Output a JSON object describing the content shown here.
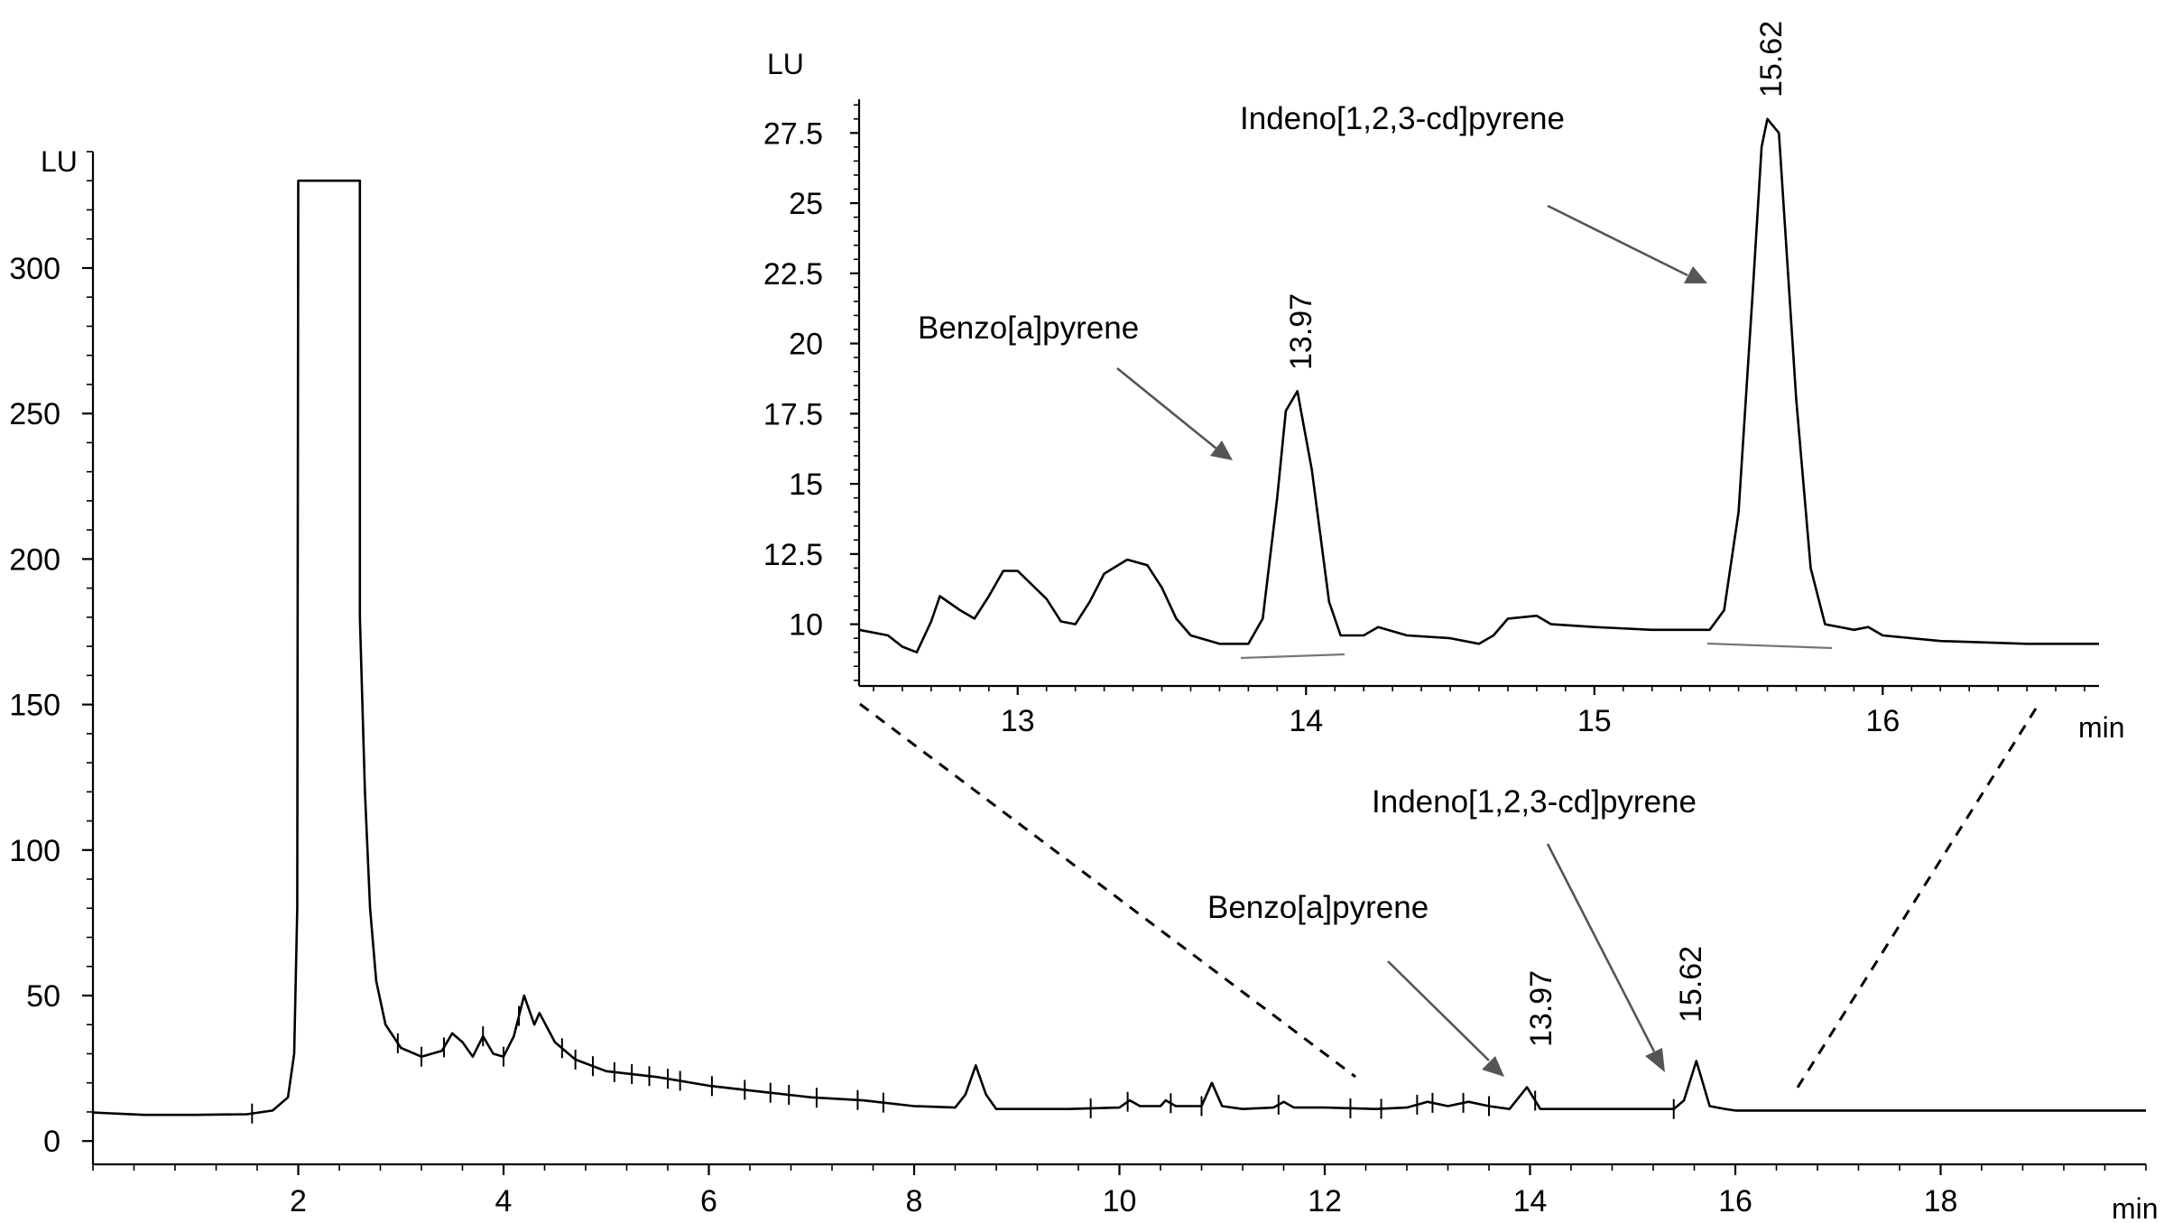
{
  "chart_data": [
    {
      "id": "main",
      "type": "line",
      "title": "",
      "xlabel": "min",
      "ylabel": "LU",
      "xlim": [
        0,
        20
      ],
      "ylim": [
        -8,
        340
      ],
      "x_ticks": [
        2,
        4,
        6,
        8,
        10,
        12,
        14,
        16,
        18
      ],
      "y_ticks": [
        0,
        50,
        100,
        150,
        200,
        250,
        300
      ],
      "grid": false,
      "series": [
        {
          "points": [
            [
              0,
              9.8
            ],
            [
              0.5,
              9
            ],
            [
              1.0,
              9
            ],
            [
              1.5,
              9.2
            ],
            [
              1.75,
              10.5
            ],
            [
              1.9,
              15
            ],
            [
              1.96,
              30
            ],
            [
              1.99,
              80
            ],
            [
              2.0,
              330
            ],
            [
              2.6,
              330
            ],
            [
              2.6,
              180
            ],
            [
              2.65,
              120
            ],
            [
              2.7,
              80
            ],
            [
              2.76,
              55
            ],
            [
              2.85,
              40
            ],
            [
              3.0,
              32
            ],
            [
              3.2,
              29
            ],
            [
              3.4,
              31
            ],
            [
              3.5,
              37
            ],
            [
              3.6,
              34
            ],
            [
              3.7,
              29
            ],
            [
              3.8,
              36
            ],
            [
              3.9,
              30
            ],
            [
              4.0,
              29
            ],
            [
              4.1,
              36
            ],
            [
              4.2,
              50
            ],
            [
              4.3,
              40
            ],
            [
              4.35,
              44
            ],
            [
              4.5,
              34
            ],
            [
              4.7,
              28
            ],
            [
              5.0,
              24
            ],
            [
              5.5,
              22
            ],
            [
              6.0,
              19
            ],
            [
              6.5,
              17
            ],
            [
              7.0,
              15
            ],
            [
              7.5,
              14
            ],
            [
              8.0,
              12
            ],
            [
              8.4,
              11.5
            ],
            [
              8.5,
              16
            ],
            [
              8.6,
              26
            ],
            [
              8.7,
              16
            ],
            [
              8.8,
              11
            ],
            [
              9.0,
              11
            ],
            [
              9.5,
              11
            ],
            [
              10.0,
              11.5
            ],
            [
              10.1,
              14
            ],
            [
              10.2,
              12
            ],
            [
              10.4,
              12
            ],
            [
              10.45,
              14
            ],
            [
              10.55,
              12
            ],
            [
              10.8,
              12
            ],
            [
              10.9,
              20
            ],
            [
              11.0,
              12
            ],
            [
              11.2,
              11
            ],
            [
              11.5,
              11.5
            ],
            [
              11.6,
              13.5
            ],
            [
              11.7,
              11.5
            ],
            [
              12.0,
              11.5
            ],
            [
              12.5,
              11
            ],
            [
              12.8,
              11.5
            ],
            [
              13.0,
              13.5
            ],
            [
              13.2,
              12
            ],
            [
              13.4,
              13.5
            ],
            [
              13.6,
              12
            ],
            [
              13.8,
              11
            ],
            [
              13.97,
              18.5
            ],
            [
              14.1,
              11
            ],
            [
              14.3,
              11
            ],
            [
              14.6,
              11
            ],
            [
              15.0,
              11
            ],
            [
              15.4,
              11
            ],
            [
              15.5,
              14
            ],
            [
              15.62,
              27.5
            ],
            [
              15.75,
              12
            ],
            [
              15.9,
              11
            ],
            [
              16.0,
              10.5
            ],
            [
              17.0,
              10.5
            ],
            [
              18.0,
              10.5
            ],
            [
              19.0,
              10.5
            ],
            [
              20.0,
              10.5
            ]
          ]
        }
      ],
      "event_marks_x": [
        1.55,
        2.97,
        3.2,
        3.42,
        3.8,
        4.0,
        4.15,
        4.57,
        4.7,
        4.87,
        5.08,
        5.25,
        5.42,
        5.6,
        5.72,
        6.03,
        6.35,
        6.6,
        6.78,
        7.05,
        7.45,
        7.7,
        9.72,
        10.08,
        10.5,
        10.8,
        11.55,
        12.25,
        12.55,
        12.9,
        13.05,
        13.35,
        13.6,
        14.05,
        15.4
      ]
    },
    {
      "id": "inset",
      "type": "line",
      "title": "",
      "xlabel": "min",
      "ylabel": "LU",
      "xlim": [
        12.45,
        16.75
      ],
      "ylim": [
        7.8,
        28.7
      ],
      "x_ticks": [
        13,
        14,
        15,
        16
      ],
      "y_ticks": [
        10,
        12.5,
        15,
        17.5,
        20,
        22.5,
        25,
        27.5
      ],
      "grid": false,
      "series": [
        {
          "points": [
            [
              12.45,
              9.8
            ],
            [
              12.55,
              9.6
            ],
            [
              12.6,
              9.2
            ],
            [
              12.65,
              9.0
            ],
            [
              12.7,
              10.1
            ],
            [
              12.73,
              11.0
            ],
            [
              12.8,
              10.5
            ],
            [
              12.85,
              10.2
            ],
            [
              12.9,
              11.0
            ],
            [
              12.95,
              11.9
            ],
            [
              13.0,
              11.9
            ],
            [
              13.05,
              11.4
            ],
            [
              13.1,
              10.9
            ],
            [
              13.15,
              10.1
            ],
            [
              13.2,
              10.0
            ],
            [
              13.25,
              10.8
            ],
            [
              13.3,
              11.8
            ],
            [
              13.38,
              12.3
            ],
            [
              13.45,
              12.1
            ],
            [
              13.5,
              11.3
            ],
            [
              13.55,
              10.2
            ],
            [
              13.6,
              9.6
            ],
            [
              13.7,
              9.3
            ],
            [
              13.8,
              9.3
            ],
            [
              13.85,
              10.2
            ],
            [
              13.9,
              14.5
            ],
            [
              13.93,
              17.6
            ],
            [
              13.97,
              18.3
            ],
            [
              14.02,
              15.5
            ],
            [
              14.08,
              10.8
            ],
            [
              14.12,
              9.6
            ],
            [
              14.2,
              9.6
            ],
            [
              14.25,
              9.9
            ],
            [
              14.35,
              9.6
            ],
            [
              14.5,
              9.5
            ],
            [
              14.6,
              9.3
            ],
            [
              14.65,
              9.6
            ],
            [
              14.7,
              10.2
            ],
            [
              14.8,
              10.3
            ],
            [
              14.85,
              10.0
            ],
            [
              15.0,
              9.9
            ],
            [
              15.2,
              9.8
            ],
            [
              15.4,
              9.8
            ],
            [
              15.45,
              10.5
            ],
            [
              15.5,
              14.0
            ],
            [
              15.55,
              22.0
            ],
            [
              15.58,
              27.0
            ],
            [
              15.6,
              28.0
            ],
            [
              15.64,
              27.5
            ],
            [
              15.7,
              18.0
            ],
            [
              15.75,
              12.0
            ],
            [
              15.8,
              10.0
            ],
            [
              15.9,
              9.8
            ],
            [
              15.95,
              9.9
            ],
            [
              16.0,
              9.6
            ],
            [
              16.2,
              9.4
            ],
            [
              16.5,
              9.3
            ],
            [
              16.75,
              9.3
            ]
          ]
        }
      ]
    }
  ],
  "annotations": {
    "main_benzo": "Benzo[a]pyrene",
    "main_indeno": "Indeno[1,2,3-cd]pyrene",
    "main_peak1": "13.97",
    "main_peak2": "15.62",
    "inset_benzo": "Benzo[a]pyrene",
    "inset_indeno": "Indeno[1,2,3-cd]pyrene",
    "inset_peak1": "13.97",
    "inset_peak2": "15.62"
  },
  "colors": {
    "trace": "#000000",
    "arrow": "#555555",
    "baseline": "#777777"
  }
}
